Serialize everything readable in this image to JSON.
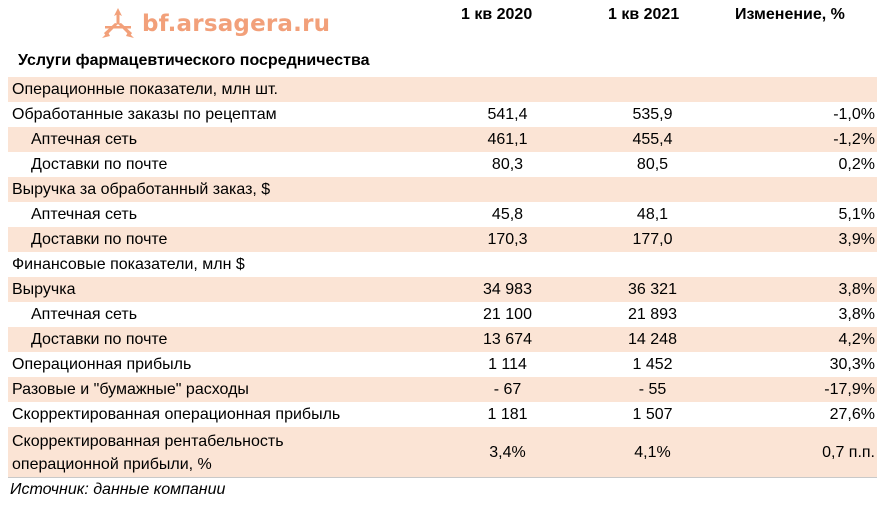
{
  "logo": {
    "text": "bf.arsagera.ru",
    "color": "#f2a07a",
    "icon": "arsagera-logo-icon"
  },
  "columns": {
    "q1_2020": "1 кв 2020",
    "q1_2021": "1 кв 2021",
    "change": "Изменение, %"
  },
  "subtitle": "Услуги фармацевтического посредничества",
  "colors": {
    "shade": "#fbe4d5"
  },
  "rows": [
    {
      "label": "Операционные показатели, млн шт.",
      "v1": "",
      "v2": "",
      "v3": ""
    },
    {
      "label": "Обработанные заказы по рецептам",
      "v1": "541,4",
      "v2": "535,9",
      "v3": "-1,0%"
    },
    {
      "label": "Аптечная сеть",
      "v1": "461,1",
      "v2": "455,4",
      "v3": "-1,2%"
    },
    {
      "label": "Доставки по почте",
      "v1": "80,3",
      "v2": "80,5",
      "v3": "0,2%"
    },
    {
      "label": "Выручка за обработанный заказ, $",
      "v1": "",
      "v2": "",
      "v3": ""
    },
    {
      "label": "Аптечная сеть",
      "v1": "45,8",
      "v2": "48,1",
      "v3": "5,1%"
    },
    {
      "label": "Доставки по почте",
      "v1": "170,3",
      "v2": "177,0",
      "v3": "3,9%"
    },
    {
      "label": "Финансовые показатели, млн $",
      "v1": "",
      "v2": "",
      "v3": ""
    },
    {
      "label": "Выручка",
      "v1": "34 983",
      "v2": "36 321",
      "v3": "3,8%"
    },
    {
      "label": "Аптечная сеть",
      "v1": "21 100",
      "v2": "21 893",
      "v3": "3,8%"
    },
    {
      "label": "Доставки по почте",
      "v1": "13 674",
      "v2": "14 248",
      "v3": "4,2%"
    },
    {
      "label": "Операционная прибыль",
      "v1": "1 114",
      "v2": "1 452",
      "v3": "30,3%"
    },
    {
      "label": "Разовые и \"бумажные\" расходы",
      "v1": "- 67",
      "v2": "- 55",
      "v3": "-17,9%"
    },
    {
      "label": "Скорректированная операционная прибыль",
      "v1": "1 181",
      "v2": "1 507",
      "v3": "27,6%"
    },
    {
      "label_line1": "Скорректированная рентабельность",
      "label_line2": "операционной прибыли, %",
      "v1": "3,4%",
      "v2": "4,1%",
      "v3": "0,7 п.п."
    }
  ],
  "source": "Источник: данные компании"
}
